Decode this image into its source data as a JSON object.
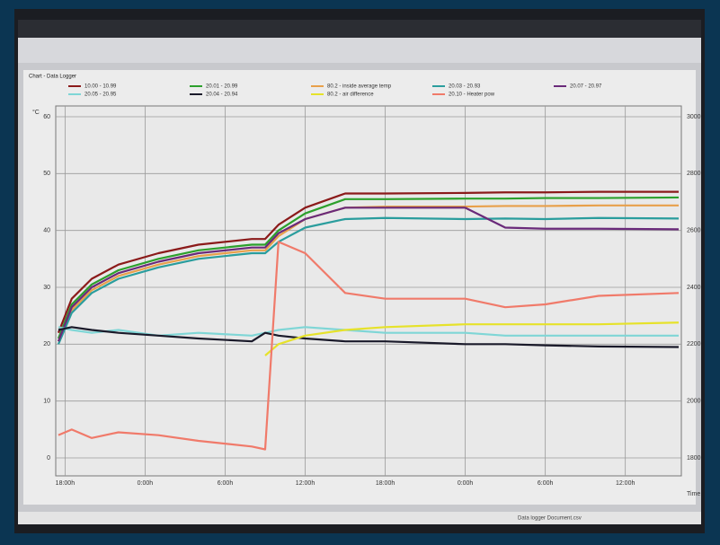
{
  "window": {
    "title": "Chart - Data Logger",
    "status": "Data logger Document.csv"
  },
  "chart_data": {
    "type": "line",
    "y_unit": "°C",
    "x_label": "Time",
    "xlim": [
      -0.7,
      46.2
    ],
    "xticks": [
      {
        "value": 0,
        "label": "18:00h"
      },
      {
        "value": 6,
        "label": "0:00h"
      },
      {
        "value": 12,
        "label": "6:00h"
      },
      {
        "value": 18,
        "label": "12:00h"
      },
      {
        "value": 24,
        "label": "18:00h"
      },
      {
        "value": 30,
        "label": "0:00h"
      },
      {
        "value": 36,
        "label": "6:00h"
      },
      {
        "value": 42,
        "label": "12:00h"
      }
    ],
    "ylim": [
      0,
      60
    ],
    "yticks": [
      0,
      10,
      20,
      30,
      40,
      50,
      60
    ],
    "y2lim": [
      1800,
      3000
    ],
    "y2ticks": [
      1800,
      2000,
      2200,
      2400,
      2600,
      2800,
      3000
    ],
    "grid": true,
    "x": [
      -0.5,
      0.5,
      2,
      4,
      7,
      10,
      14,
      15,
      16,
      18,
      21,
      24,
      30,
      33,
      36,
      40,
      46
    ],
    "series": [
      {
        "name": "10.00 - 10.99",
        "color": "#8b1a1a",
        "values": [
          22,
          28,
          31.5,
          34,
          36,
          37.5,
          38.5,
          38.5,
          41,
          44,
          46.5,
          46.5,
          46.6,
          46.7,
          46.7,
          46.8,
          46.8
        ]
      },
      {
        "name": "20.01 - 20.99",
        "color": "#2ca02c",
        "values": [
          21,
          27,
          30.5,
          33,
          35,
          36.5,
          37.5,
          37.5,
          40,
          43,
          45.5,
          45.5,
          45.6,
          45.6,
          45.7,
          45.7,
          45.8
        ]
      },
      {
        "name": "80.2 - inside average temp",
        "color": "#e8a04a",
        "values": [
          20.5,
          26,
          29.5,
          32,
          34,
          35.5,
          36.5,
          36.5,
          39,
          42,
          44,
          44.2,
          44.2,
          44.3,
          44.3,
          44.4,
          44.4
        ]
      },
      {
        "name": "20.03 - 20.93",
        "color": "#2a9d9d",
        "values": [
          20,
          25.5,
          29,
          31.5,
          33.5,
          35,
          36,
          36,
          38,
          40.5,
          42,
          42.2,
          42,
          42.1,
          42,
          42.2,
          42.1
        ]
      },
      {
        "name": "20.07 - 20.97",
        "color": "#6a2a7a",
        "values": [
          20.5,
          26.5,
          30,
          32.5,
          34.5,
          36,
          37,
          37,
          39.5,
          42,
          44,
          44,
          44,
          40.5,
          40.3,
          40.3,
          40.2
        ]
      },
      {
        "name": "20.05 - 20.95",
        "color": "#7fd6d6",
        "values": [
          23,
          22.5,
          22,
          22.5,
          21.5,
          22,
          21.5,
          22,
          22.5,
          23,
          22.5,
          22,
          22,
          21.5,
          21.5,
          21.5,
          21.5
        ]
      },
      {
        "name": "20.04 - 20.94",
        "color": "#1a1a2a",
        "values": [
          22.5,
          23,
          22.5,
          22,
          21.5,
          21,
          20.5,
          22,
          21.5,
          21,
          20.5,
          20.5,
          20,
          20,
          19.8,
          19.6,
          19.5
        ]
      },
      {
        "name": "80.2 - air difference",
        "color": "#e6e22a",
        "values": [
          null,
          null,
          null,
          null,
          null,
          null,
          null,
          18,
          20,
          21.5,
          22.5,
          23,
          23.5,
          23.5,
          23.5,
          23.5,
          23.8
        ]
      },
      {
        "name": "20.10 - Heater pow",
        "color": "#f07a6a",
        "axis": "y2",
        "values": [
          1880,
          1900,
          1870,
          1890,
          1880,
          1860,
          1840,
          1830,
          2560,
          2520,
          2380,
          2360,
          2360,
          2330,
          2340,
          2370,
          2380
        ]
      }
    ]
  }
}
